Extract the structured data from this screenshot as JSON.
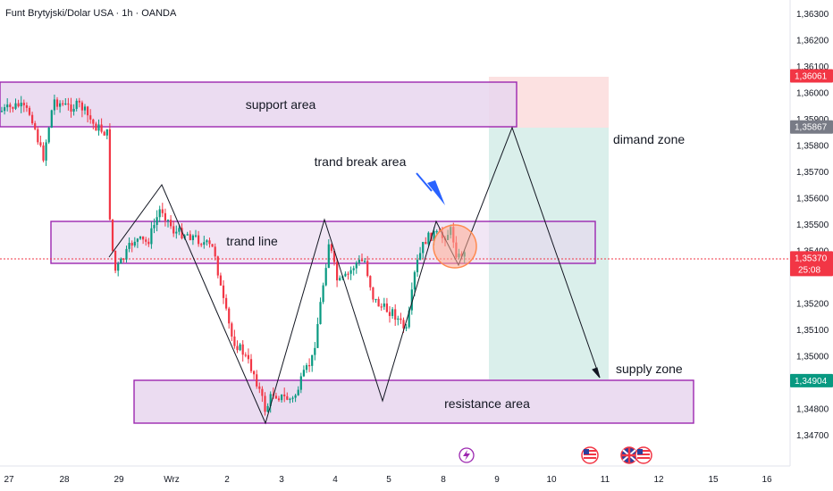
{
  "header": {
    "symbol_title": "Funt Brytyjski/Dolar USA · 1h · OANDA"
  },
  "price_axis": {
    "ticks": [
      "1,36300",
      "1,36200",
      "1,36100",
      "1,36000",
      "1,35900",
      "1,35800",
      "1,35700",
      "1,35600",
      "1,35500",
      "1,35400",
      "1,35200",
      "1,35100",
      "1,35000",
      "1,34800",
      "1,34700"
    ],
    "tick_values": [
      1.363,
      1.362,
      1.361,
      1.36,
      1.359,
      1.358,
      1.357,
      1.356,
      1.355,
      1.354,
      1.352,
      1.351,
      1.35,
      1.348,
      1.347
    ],
    "range": [
      1.3463,
      1.3643
    ],
    "badges": [
      {
        "label": "1,36061",
        "value": 1.36061,
        "color": "#f23645"
      },
      {
        "label": "1,35867",
        "value": 1.35867,
        "color": "#787b86"
      },
      {
        "label": "1,35370",
        "value": 1.3537,
        "color": "#f23645",
        "countdown": "25:08"
      },
      {
        "label": "1,34904",
        "value": 1.34904,
        "color": "#089981"
      }
    ]
  },
  "time_axis": {
    "labels": [
      "27",
      "28",
      "29",
      "Wrz",
      "2",
      "3",
      "4",
      "5",
      "8",
      "9",
      "10",
      "11",
      "12",
      "15",
      "16"
    ]
  },
  "annotations": {
    "support_area": "support area",
    "trend_line": "trand line",
    "resistance_area": "resistance area",
    "trend_break_area": "trand break area",
    "demand_zone": "dimand zone",
    "supply_zone": "supply zone"
  },
  "colors": {
    "zone_fill": "#e8d6ef",
    "zone_border": "#9c27b0",
    "stop_fill": "#fcdcdc",
    "target_fill": "#d6ede9",
    "bull": "#089981",
    "bear": "#f23645",
    "last_price_line": "#f23645"
  },
  "event_icons": [
    "lightning-event-icon",
    "us-flag-event-icon",
    "us-flag-event-icon",
    "gb-flag-event-icon"
  ]
}
